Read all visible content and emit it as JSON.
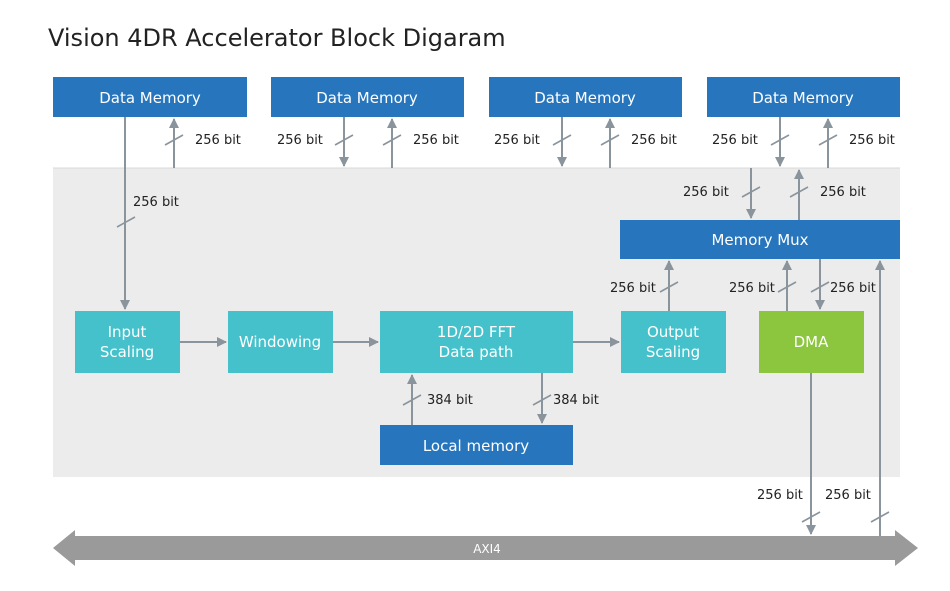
{
  "title": "Vision 4DR Accelerator Block Digaram",
  "colors": {
    "memory": "#2675bd",
    "processing": "#45c1cb",
    "dma": "#8cc63f",
    "panel": "#ececec",
    "bus": "#9a9a9a",
    "arrow": "#8a949c"
  },
  "blocks": {
    "data_memory_1": "Data Memory",
    "data_memory_2": "Data Memory",
    "data_memory_3": "Data Memory",
    "data_memory_4": "Data Memory",
    "memory_mux": "Memory Mux",
    "input_scaling": [
      "Input",
      "Scaling"
    ],
    "windowing": "Windowing",
    "fft": [
      "1D/2D FFT",
      "Data path"
    ],
    "output_scaling": [
      "Output",
      "Scaling"
    ],
    "dma": "DMA",
    "local_memory": "Local memory",
    "bus": "AXI4"
  },
  "connections": {
    "dm1_up": "256 bit",
    "dm1_to_input": "256 bit",
    "dm2_down": "256 bit",
    "dm2_up": "256 bit",
    "dm3_down": "256 bit",
    "dm3_up": "256 bit",
    "dm4_down": "256 bit",
    "dm4_up": "256 bit",
    "mux_down": "256 bit",
    "mux_up": "256 bit",
    "output_to_mux": "256 bit",
    "dma_to_mux": "256 bit",
    "mux_to_dma": "256 bit",
    "local_to_fft": "384 bit",
    "fft_to_local": "384 bit",
    "dma_to_bus": "256 bit",
    "bus_to_mux": "256 bit"
  }
}
